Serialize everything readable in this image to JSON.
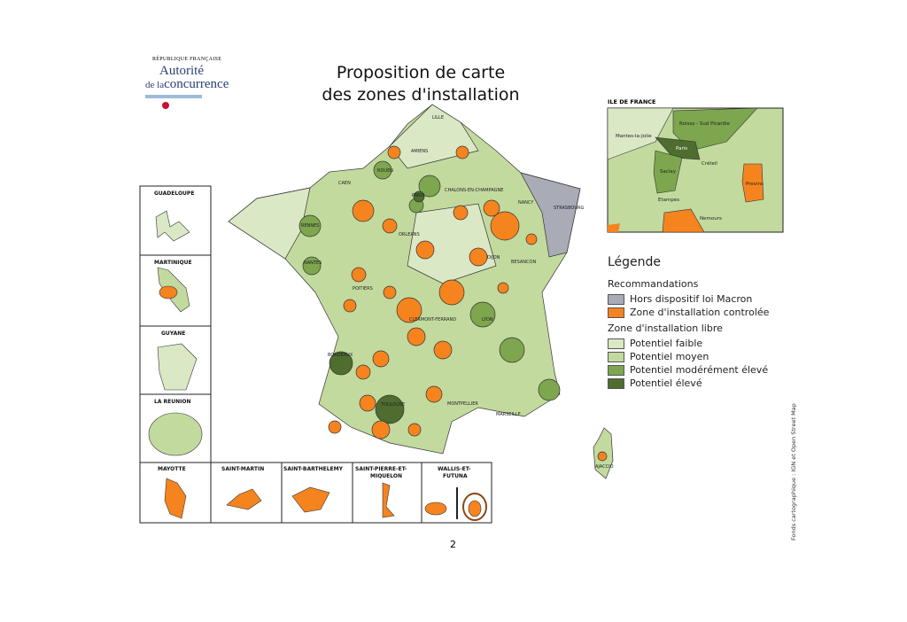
{
  "logo": {
    "top": "RÉPUBLIQUE FRANÇAISE",
    "line1": "Autorité",
    "line2_prefix": "de la",
    "line2": "concurrence"
  },
  "title": {
    "line1": "Proposition de carte",
    "line2": "des zones d'installation"
  },
  "colors": {
    "faible": "#dbe8c5",
    "moyen": "#c3da9f",
    "modere": "#7da64e",
    "eleve": "#4e6d2e",
    "controlee": "#f5841f",
    "hors": "#a9abb6"
  },
  "cities": [
    "LILLE",
    "AMIENS",
    "ROUEN",
    "CAEN",
    "PARIS",
    "CHALONS-EN-CHAMPAGNE",
    "NANCY",
    "STRASBOURG",
    "RENNES",
    "ORLEANS",
    "NANTES",
    "DIJON",
    "BESANCON",
    "POITIERS",
    "CLERMONT-FERRAND",
    "LYON",
    "BORDEAUX",
    "TOULOUSE",
    "MONTPELLIER",
    "MARSEILLE",
    "AJACCIO"
  ],
  "overseas": [
    "GUADELOUPE",
    "MARTINIQUE",
    "GUYANE",
    "LA REUNION",
    "MAYOTTE",
    "SAINT-MARTIN",
    "SAINT-BARTHELEMY",
    "SAINT-PIERRE-ET-",
    "MIQUELON",
    "WALLIS-ET-",
    "FUTUNA"
  ],
  "idf": {
    "title": "ILE DE FRANCE",
    "places": [
      "Roissy - Sud Picardie",
      "Mantes-la-Jolie",
      "Paris",
      "Saclay",
      "Créteil",
      "Provins",
      "Etampes",
      "Nemours"
    ]
  },
  "legend": {
    "title": "Légende",
    "group1": "Recommandations",
    "items1": [
      "Hors dispositif loi Macron",
      "Zone d'installation controlée"
    ],
    "group2": "Zone d'installation libre",
    "items2": [
      "Potentiel faible",
      "Potentiel moyen",
      "Potentiel modérément élevé",
      "Potentiel élevé"
    ]
  },
  "credit": "Fonds cartographique : IGN et Open Street Map",
  "page": "2"
}
